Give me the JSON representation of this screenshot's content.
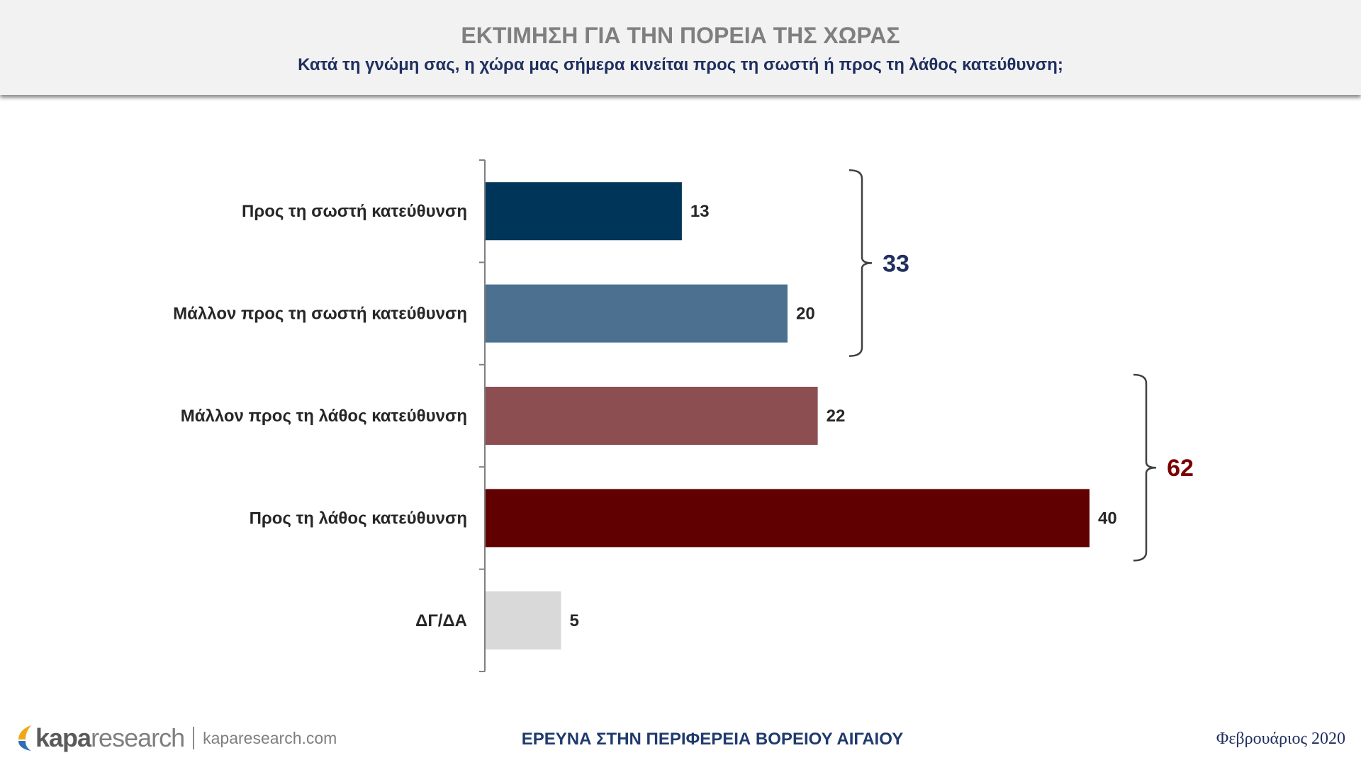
{
  "header": {
    "title": "ΕΚΤΙΜΗΣΗ ΓΙΑ ΤΗΝ ΠΟΡΕΙΑ ΤΗΣ ΧΩΡΑΣ",
    "subtitle": "Κατά τη γνώμη σας, η χώρα μας σήμερα κινείται προς τη σωστή ή προς τη λάθος κατεύθυνση;"
  },
  "chart_data": {
    "type": "bar",
    "orientation": "horizontal",
    "categories": [
      "Προς τη σωστή κατεύθυνση",
      "Μάλλον προς τη σωστή κατεύθυνση",
      "Μάλλον προς τη λάθος κατεύθυνση",
      "Προς τη λάθος κατεύθυνση",
      "ΔΓ/ΔΑ"
    ],
    "values": [
      13,
      20,
      22,
      40,
      5
    ],
    "colors": [
      "#00355a",
      "#4c7190",
      "#8c4e50",
      "#600000",
      "#d9d9d9"
    ],
    "xlim": [
      0,
      40
    ],
    "grid": false,
    "groups": [
      {
        "label": "33",
        "members": [
          0,
          1
        ],
        "color": "#1f2f5f"
      },
      {
        "label": "62",
        "members": [
          2,
          3
        ],
        "color": "#7a0000"
      }
    ]
  },
  "footer": {
    "brand_bold": "kapa",
    "brand_light": "research",
    "url": "kaparesearch.com",
    "center_text": "ΕΡΕΥΝΑ ΣΤΗΝ ΠΕΡΙΦΕΡΕΙΑ ΒΟΡΕΙΟΥ ΑΙΓΑΙΟΥ",
    "date": "Φεβρουάριος 2020"
  }
}
